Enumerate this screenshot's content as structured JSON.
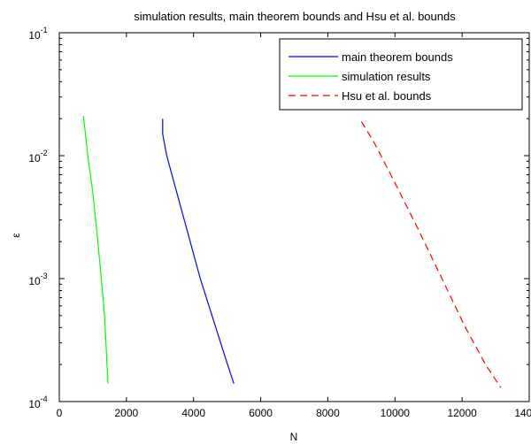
{
  "chart_data": {
    "type": "line",
    "title": "simulation results, main theorem bounds and Hsu et al. bounds",
    "xlabel": "N",
    "ylabel": "ε",
    "xlim": [
      0,
      14000
    ],
    "ylim": [
      0.0001,
      0.1
    ],
    "yscale": "log",
    "grid": false,
    "legend_position": "top-right",
    "x_ticks": [
      {
        "value": 0,
        "label": "0"
      },
      {
        "value": 2000,
        "label": "2000"
      },
      {
        "value": 4000,
        "label": "4000"
      },
      {
        "value": 6000,
        "label": "6000"
      },
      {
        "value": 8000,
        "label": "8000"
      },
      {
        "value": 10000,
        "label": "10000"
      },
      {
        "value": 12000,
        "label": "12000"
      },
      {
        "value": 14000,
        "label": "14000"
      }
    ],
    "y_ticks": [
      {
        "value": 0.0001,
        "base": "10",
        "exp": "-4"
      },
      {
        "value": 0.001,
        "base": "10",
        "exp": "-3"
      },
      {
        "value": 0.01,
        "base": "10",
        "exp": "-2"
      },
      {
        "value": 0.1,
        "base": "10",
        "exp": "-1"
      }
    ],
    "series": [
      {
        "name": "main theorem bounds",
        "color": "#0000ff",
        "dash": "solid",
        "points": [
          [
            3080,
            0.02
          ],
          [
            3080,
            0.015
          ],
          [
            3200,
            0.01
          ],
          [
            3500,
            0.005
          ],
          [
            3900,
            0.002
          ],
          [
            4200,
            0.001
          ],
          [
            4550,
            0.0005
          ],
          [
            4900,
            0.00025
          ],
          [
            5200,
            0.00014
          ]
        ]
      },
      {
        "name": "simulation results",
        "color": "#00ff00",
        "dash": "solid",
        "points": [
          [
            720,
            0.021
          ],
          [
            850,
            0.01
          ],
          [
            1000,
            0.005
          ],
          [
            1150,
            0.002
          ],
          [
            1250,
            0.001
          ],
          [
            1350,
            0.0005
          ],
          [
            1450,
            0.00014
          ]
        ]
      },
      {
        "name": "Hsu et al. bounds",
        "color": "#ff0000",
        "dash": "dashed",
        "points": [
          [
            9000,
            0.019
          ],
          [
            9400,
            0.0125
          ],
          [
            10000,
            0.006
          ],
          [
            10700,
            0.0025
          ],
          [
            11400,
            0.001
          ],
          [
            12100,
            0.0004
          ],
          [
            12700,
            0.0002
          ],
          [
            13150,
            0.00013
          ]
        ]
      }
    ]
  }
}
